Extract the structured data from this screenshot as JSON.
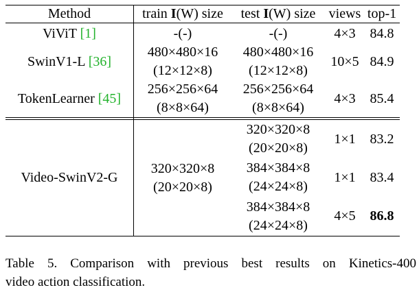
{
  "table": {
    "headers": {
      "method": "Method",
      "train_prefix": "train ",
      "train_bold": "I",
      "train_suffix": "(W) size",
      "test_prefix": "test ",
      "test_bold": "I",
      "test_suffix": "(W) size",
      "views": "views",
      "top1": "top-1"
    },
    "rows": [
      {
        "method": "ViViT ",
        "cite": "[1]",
        "train": [
          "-(-)"
        ],
        "test": [
          "-(-)"
        ],
        "views": "4×3",
        "top1": "84.8"
      },
      {
        "method": "SwinV1-L ",
        "cite": "[36]",
        "train": [
          "480×480×16",
          "(12×12×8)"
        ],
        "test": [
          "480×480×16",
          "(12×12×8)"
        ],
        "views": "10×5",
        "top1": "84.9"
      },
      {
        "method": "TokenLearner ",
        "cite": "[45]",
        "train": [
          "256×256×64",
          "(8×8×64)"
        ],
        "test": [
          "256×256×64",
          "(8×8×64)"
        ],
        "views": "4×3",
        "top1": "85.4"
      }
    ],
    "group": {
      "method": "Video-SwinV2-G",
      "train": [
        "320×320×8",
        "(20×20×8)"
      ],
      "subrows": [
        {
          "test": [
            "320×320×8",
            "(20×20×8)"
          ],
          "views": "1×1",
          "top1": "83.2"
        },
        {
          "test": [
            "384×384×8",
            "(24×24×8)"
          ],
          "views": "1×1",
          "top1": "83.4"
        },
        {
          "test": [
            "384×384×8",
            "(24×24×8)"
          ],
          "views": "4×5",
          "top1": "86.8"
        }
      ]
    }
  },
  "caption": {
    "line1": "Table 5.  Comparison with previous best results on Kinetics-400",
    "line2": "video action classification."
  }
}
